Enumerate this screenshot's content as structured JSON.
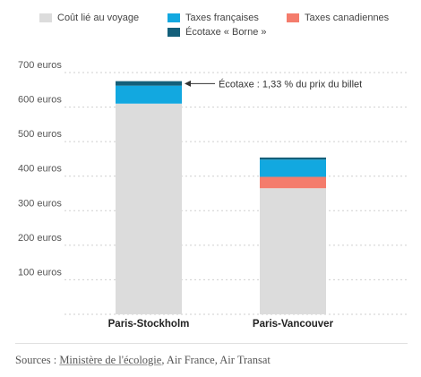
{
  "chart_data": {
    "type": "bar",
    "stacked": true,
    "categories": [
      "Paris-Stockholm",
      "Paris-Vancouver"
    ],
    "series": [
      {
        "name": "Coût lié au voyage",
        "color": "#dcdcdc",
        "values": [
          610,
          365
        ]
      },
      {
        "name": "Taxes canadiennes",
        "color": "#f47c6c",
        "values": [
          0,
          33
        ]
      },
      {
        "name": "Taxes françaises",
        "color": "#12a8e0",
        "values": [
          52,
          50
        ]
      },
      {
        "name": "Écotaxe « Borne »",
        "color": "#135f7a",
        "values": [
          13,
          6
        ]
      }
    ],
    "ylim": [
      0,
      700
    ],
    "yticks": [
      {
        "value": 100,
        "label": "100 euros"
      },
      {
        "value": 200,
        "label": "200 euros"
      },
      {
        "value": 300,
        "label": "300 euros"
      },
      {
        "value": 400,
        "label": "400 euros"
      },
      {
        "value": 500,
        "label": "500 euros"
      },
      {
        "value": 600,
        "label": "600 euros"
      },
      {
        "value": 700,
        "label": "700 euros"
      }
    ],
    "grid": true,
    "legend_position": "top",
    "annotation": {
      "text": "Écotaxe : 1,33 % du prix du billet",
      "category": "Paris-Stockholm",
      "value": 668
    }
  },
  "sources": {
    "prefix": "Sources : ",
    "link": "Ministère de l'écologie",
    "rest": ", Air France, Air Transat"
  }
}
